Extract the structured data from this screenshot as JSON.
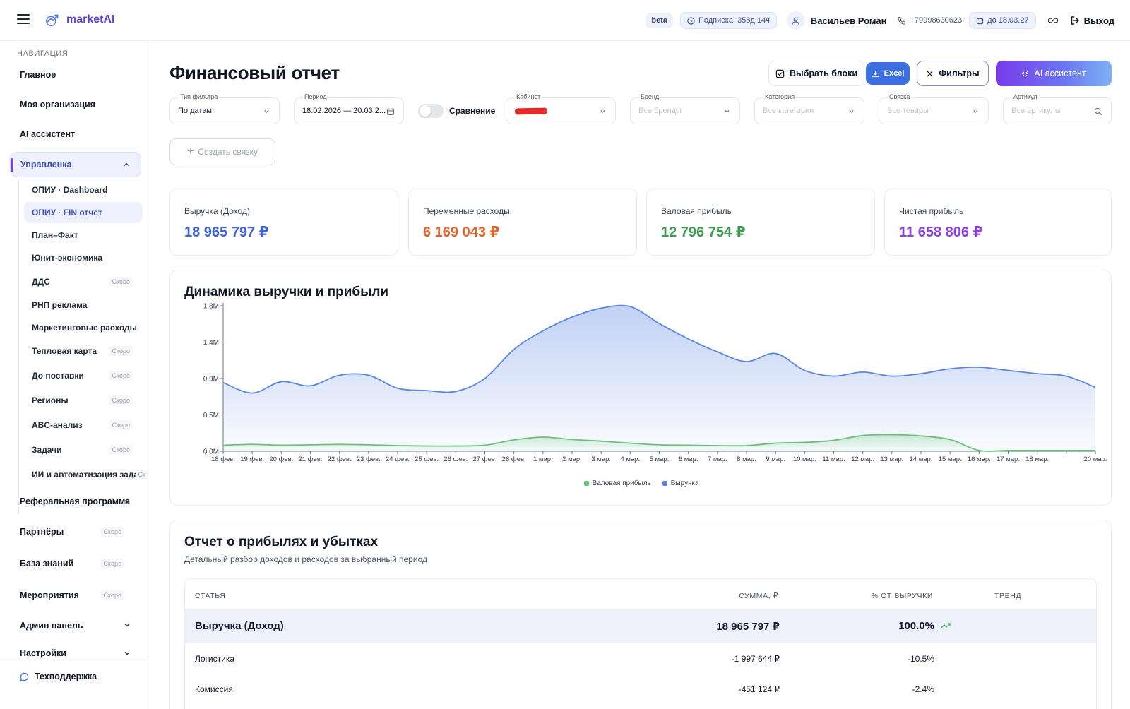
{
  "header": {
    "brand": "marketAI",
    "beta": "beta",
    "subscription": "Подписка: 358д 14ч",
    "user_name": "Васильев Роман",
    "phone": "+79998630623",
    "until": "до 18.03.27",
    "logout": "Выход"
  },
  "sidebar": {
    "title": "НАВИГАЦИЯ",
    "items": [
      {
        "label": "Главное"
      },
      {
        "label": "Моя организация"
      },
      {
        "label": "AI ассистент"
      },
      {
        "label": "Управленка"
      }
    ],
    "sub_items": [
      {
        "label": "ОПИУ · Dashboard",
        "soon": ""
      },
      {
        "label": "ОПИУ · FIN отчёт",
        "soon": ""
      },
      {
        "label": "План–Факт",
        "soon": ""
      },
      {
        "label": "Юнит-экономика",
        "soon": ""
      },
      {
        "label": "ДДС",
        "soon": "Скоро"
      },
      {
        "label": "РНП реклама",
        "soon": ""
      },
      {
        "label": "Маркетинговые расходы",
        "soon": ""
      },
      {
        "label": "Тепловая карта",
        "soon": "Скоро"
      },
      {
        "label": "До поставки",
        "soon": "Скоро"
      },
      {
        "label": "Регионы",
        "soon": "Скоро"
      },
      {
        "label": "ABC-анализ",
        "soon": "Скоро"
      },
      {
        "label": "Задачи",
        "soon": "Скоро"
      },
      {
        "label": "ИИ и автоматизация задач",
        "soon": "Ск"
      }
    ],
    "lower_items": [
      {
        "label": "Реферальная программа",
        "soon": ""
      },
      {
        "label": "Партнёры",
        "soon": "Скоро"
      },
      {
        "label": "База знаний",
        "soon": "Скоро"
      },
      {
        "label": "Мероприятия",
        "soon": "Скоро"
      },
      {
        "label": "Админ панель",
        "soon": ""
      },
      {
        "label": "Настройки",
        "soon": ""
      }
    ],
    "support": "Техподдержка"
  },
  "page": {
    "title": "Финансовый отчет",
    "btn_blocks": "Выбрать блоки",
    "btn_excel": "Excel",
    "btn_filters": "Фильтры",
    "btn_ai": "AI ассистент",
    "create_link": "Создать связку"
  },
  "filters": {
    "type_label": "Тип фильтра",
    "type_value": "По датам",
    "period_label": "Период",
    "period_value": "18.02.2026 — 20.03.2...",
    "compare_label": "Сравнение",
    "cabinet_label": "Кабинет",
    "brand_label": "Бренд",
    "brand_ph": "Все бренды",
    "category_label": "Категория",
    "category_ph": "Все категории",
    "bundle_label": "Связка",
    "bundle_ph": "Все товары",
    "sku_label": "Артикул",
    "sku_ph": "Все артикулы"
  },
  "kpis": [
    {
      "label": "Выручка (Доход)",
      "value": "18 965 797 ₽",
      "color": "#3d63d6"
    },
    {
      "label": "Переменные расходы",
      "value": "6 169 043 ₽",
      "color": "#e0652a"
    },
    {
      "label": "Валовая прибыль",
      "value": "12 796 754 ₽",
      "color": "#3f9b52"
    },
    {
      "label": "Чистая прибыль",
      "value": "11 658 806 ₽",
      "color": "#8b3fe0"
    }
  ],
  "chart_data": {
    "type": "area",
    "title": "Динамика выручки и прибыли",
    "y_tick_labels": [
      "0.0M",
      "0.5M",
      "0.9M",
      "1.4M",
      "1.8M"
    ],
    "y_tick_values": [
      0,
      450000,
      900000,
      1350000,
      1800000
    ],
    "ylim": [
      0,
      1800000
    ],
    "x": [
      "18 фев.",
      "19 фев.",
      "20 фев.",
      "21 фев.",
      "22 фев.",
      "23 фев.",
      "24 фев.",
      "25 фев.",
      "26 фев.",
      "27 фев.",
      "28 фев.",
      "1 мар.",
      "2 мар.",
      "3 мар.",
      "4 мар.",
      "5 мар.",
      "6 мар.",
      "7 мар.",
      "8 мар.",
      "9 мар.",
      "10 мар.",
      "11 мар.",
      "12 мар.",
      "13 мар.",
      "14 мар.",
      "15 мар.",
      "16 мар.",
      "17 мар.",
      "18 мар.",
      "19 мар.",
      "20 мар."
    ],
    "x_tick_labels": [
      "18 фев.",
      "19 фев.",
      "20 фев.",
      "21 фев.",
      "22 фев.",
      "23 фев.",
      "24 фев.",
      "25 фев.",
      "26 фев.",
      "27 фев.",
      "28 фев.",
      "1 мар.",
      "2 мар.",
      "3 мар.",
      "4 мар.",
      "5 мар.",
      "6 мар.",
      "7 мар.",
      "8 мар.",
      "9 мар.",
      "10 мар.",
      "11 мар.",
      "12 мар.",
      "13 мар.",
      "14 мар.",
      "15 мар.",
      "16 мар.",
      "17 мар.",
      "18 мар.",
      "",
      "20 мар."
    ],
    "series": [
      {
        "name": "Выручка",
        "color": "#5b86e5",
        "values": [
          850000,
          720000,
          860000,
          810000,
          940000,
          940000,
          780000,
          750000,
          740000,
          900000,
          1260000,
          1490000,
          1660000,
          1770000,
          1790000,
          1580000,
          1390000,
          1230000,
          1110000,
          1210000,
          1000000,
          930000,
          980000,
          930000,
          960000,
          1020000,
          1040000,
          1000000,
          960000,
          930000,
          790000
        ]
      },
      {
        "name": "Валовая прибыль",
        "color": "#69c17a",
        "values": [
          75000,
          85000,
          75000,
          80000,
          85000,
          80000,
          70000,
          65000,
          65000,
          75000,
          140000,
          175000,
          145000,
          125000,
          100000,
          80000,
          75000,
          70000,
          70000,
          100000,
          110000,
          135000,
          195000,
          205000,
          190000,
          145000,
          10000,
          10000,
          10000,
          10000,
          10000
        ]
      }
    ],
    "grid": false,
    "legend": "bottom"
  },
  "report": {
    "title": "Отчет о прибылях и убытках",
    "subtitle": "Детальный разбор доходов и расходов за выбранный период",
    "columns": [
      "СТАТЬЯ",
      "СУММА, ₽",
      "% ОТ ВЫРУЧКИ",
      "ТРЕНД"
    ],
    "rows": [
      {
        "name": "Выручка (Доход)",
        "sum": "18 965 797 ₽",
        "pct": "100.0%"
      },
      {
        "name": "Логистика",
        "sum": "-1 997 644 ₽",
        "pct": "-10.5%"
      },
      {
        "name": "Комиссия",
        "sum": "-451 124 ₽",
        "pct": "-2.4%"
      }
    ]
  }
}
